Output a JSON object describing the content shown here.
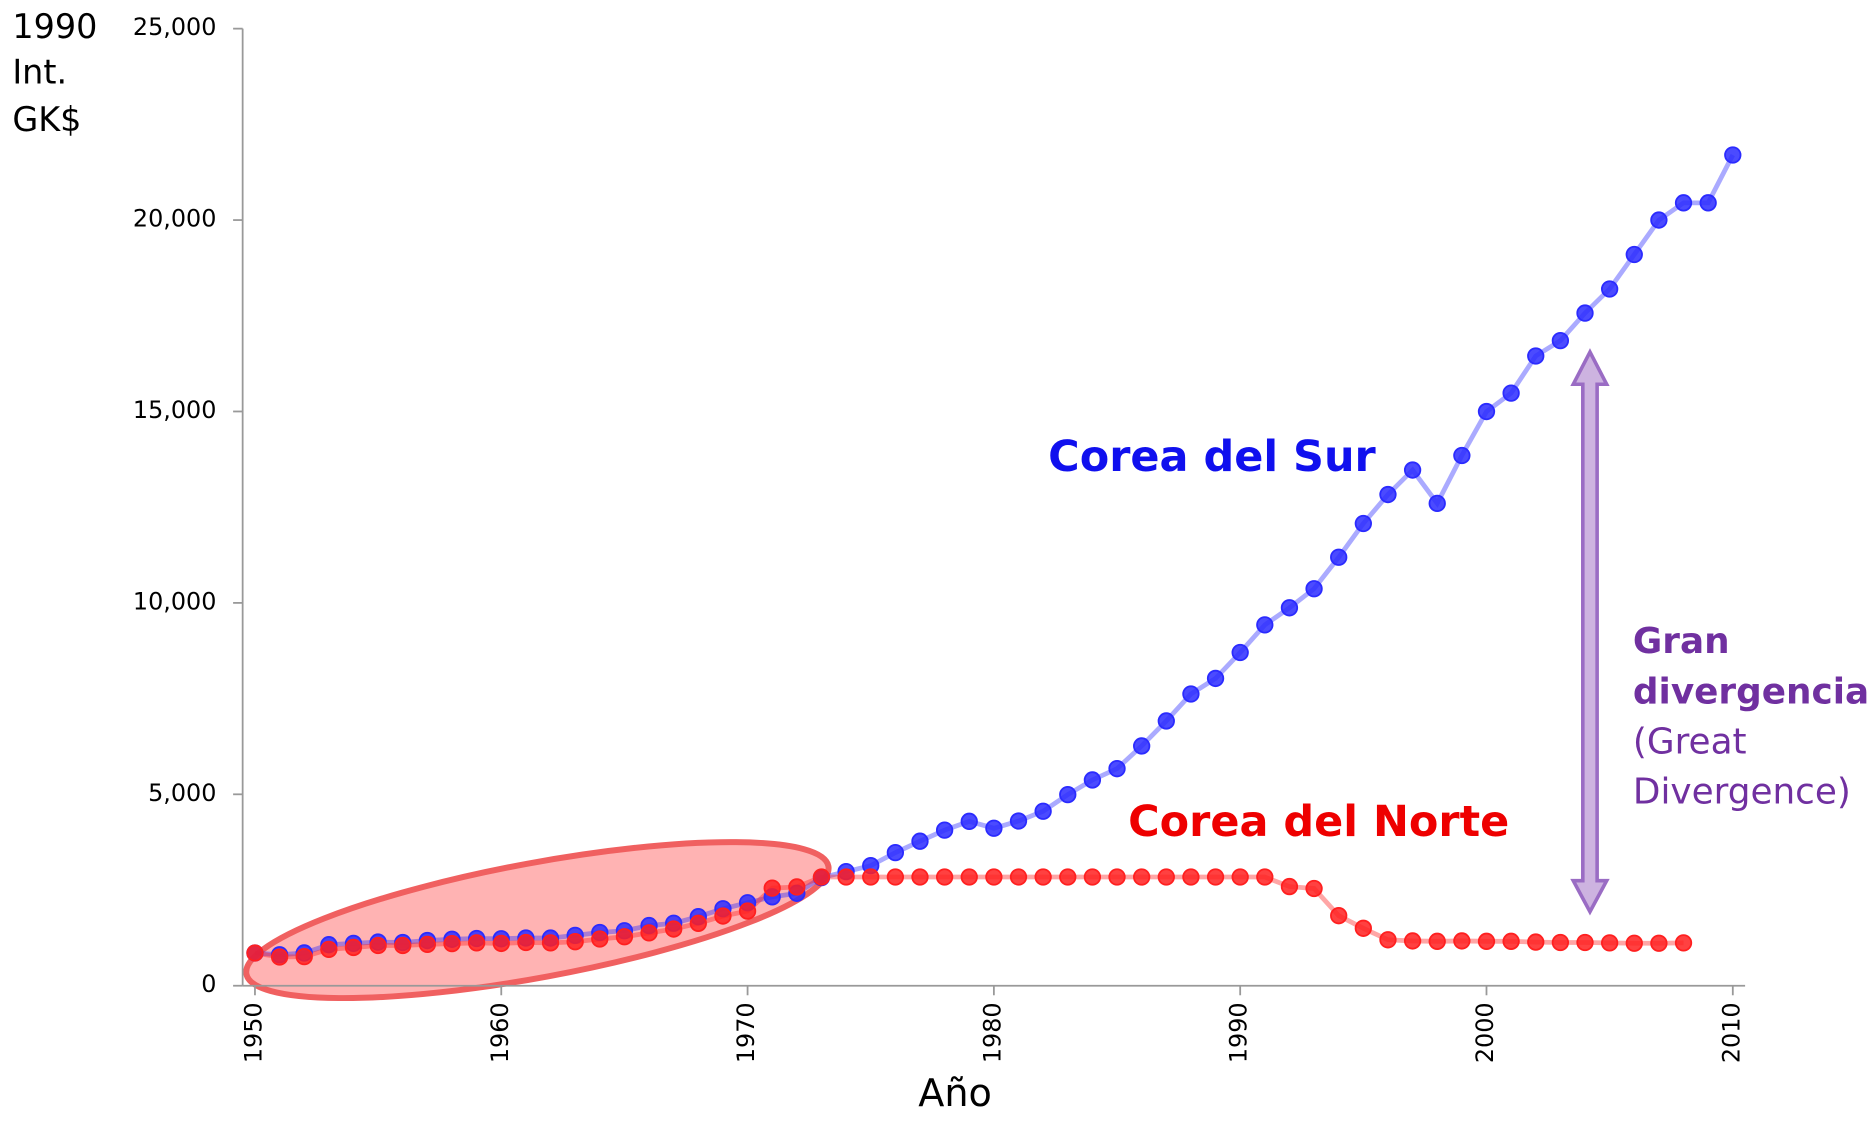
{
  "chart_data": {
    "type": "line",
    "ylabel_lines": [
      "1990",
      "Int.",
      "GK$"
    ],
    "xlabel": "Año",
    "x": [
      1950,
      1951,
      1952,
      1953,
      1954,
      1955,
      1956,
      1957,
      1958,
      1959,
      1960,
      1961,
      1962,
      1963,
      1964,
      1965,
      1966,
      1967,
      1968,
      1969,
      1970,
      1971,
      1972,
      1973,
      1974,
      1975,
      1976,
      1977,
      1978,
      1979,
      1980,
      1981,
      1982,
      1983,
      1984,
      1985,
      1986,
      1987,
      1988,
      1989,
      1990,
      1991,
      1992,
      1993,
      1994,
      1995,
      1996,
      1997,
      1998,
      1999,
      2000,
      2001,
      2002,
      2003,
      2004,
      2005,
      2006,
      2007,
      2008,
      2009,
      2010
    ],
    "series": [
      {
        "name": "Corea del Sur",
        "color": "#2b2bff",
        "values": [
          854,
          810,
          856,
          1072,
          1106,
          1140,
          1130,
          1180,
          1213,
          1233,
          1226,
          1247,
          1245,
          1316,
          1390,
          1436,
          1571,
          1632,
          1803,
          2010,
          2167,
          2322,
          2414,
          2824,
          2980,
          3137,
          3476,
          3775,
          4064,
          4294,
          4114,
          4302,
          4557,
          4992,
          5375,
          5670,
          6263,
          6916,
          7621,
          8027,
          8704,
          9425,
          9872,
          10370,
          11192,
          12074,
          12830,
          13470,
          12600,
          13850,
          14998,
          15480,
          16450,
          16850,
          17570,
          18200,
          19100,
          20000,
          20450,
          20450,
          21700
        ]
      },
      {
        "name": "Corea del Norte",
        "color": "#ff2020",
        "values": [
          854,
          750,
          760,
          950,
          1000,
          1050,
          1050,
          1080,
          1100,
          1120,
          1105,
          1130,
          1120,
          1150,
          1220,
          1280,
          1380,
          1480,
          1630,
          1820,
          1950,
          2550,
          2580,
          2840,
          2840,
          2840,
          2840,
          2840,
          2840,
          2840,
          2840,
          2840,
          2840,
          2840,
          2840,
          2840,
          2840,
          2840,
          2840,
          2840,
          2840,
          2840,
          2590,
          2540,
          1830,
          1500,
          1200,
          1170,
          1160,
          1170,
          1160,
          1160,
          1140,
          1130,
          1130,
          1120,
          1110,
          1110,
          1120,
          null,
          null
        ]
      }
    ],
    "xlim": [
      1949.5,
      2010.5
    ],
    "xticks": [
      1950,
      1960,
      1970,
      1980,
      1990,
      2000,
      2010
    ],
    "ylim": [
      0,
      25000
    ],
    "yticks": [
      0,
      {
        "value": 5000,
        "label": "5,000"
      },
      {
        "value": 10000,
        "label": "10,000"
      },
      {
        "value": 15000,
        "label": "15,000"
      },
      {
        "value": 20000,
        "label": "20,000"
      },
      {
        "value": 25000,
        "label": "25,000"
      }
    ],
    "divergence_label": [
      "Gran",
      "divergencia",
      "(Great",
      "Divergence)"
    ]
  }
}
